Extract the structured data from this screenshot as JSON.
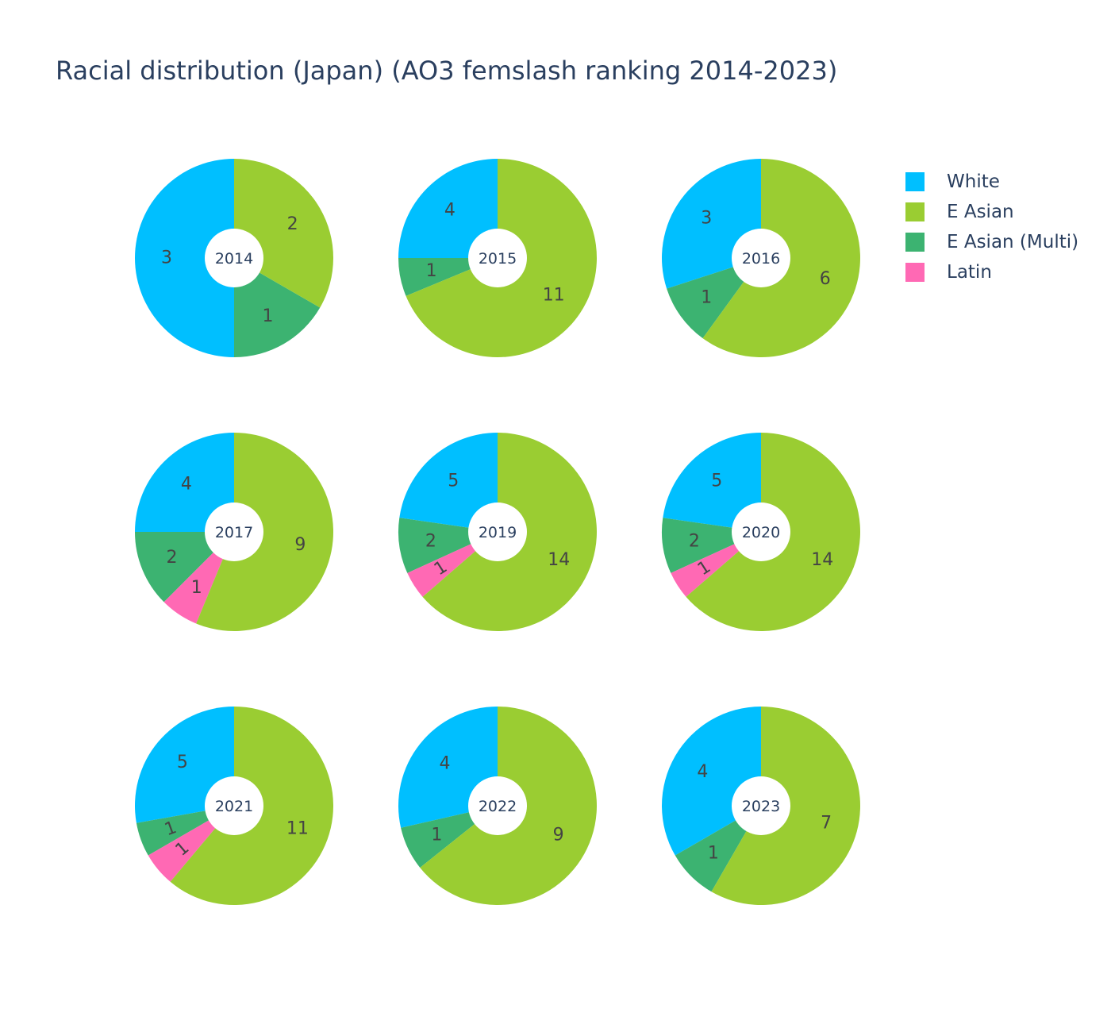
{
  "chart_data": {
    "type": "pie",
    "title": "Racial distribution (Japan) (AO3 femslash ranking 2014-2023)",
    "categories": [
      "White",
      "E Asian",
      "E Asian (Multi)",
      "Latin"
    ],
    "colors": {
      "White": "#00bfff",
      "E Asian": "#9acd32",
      "E Asian (Multi)": "#3cb371",
      "Latin": "#ff69b4"
    },
    "legend_position": "top-right",
    "donut": true,
    "pies": [
      {
        "label": "2014",
        "values": {
          "White": 3,
          "E Asian": 2,
          "E Asian (Multi)": 1,
          "Latin": 0
        }
      },
      {
        "label": "2015",
        "values": {
          "White": 4,
          "E Asian": 11,
          "E Asian (Multi)": 1,
          "Latin": 0
        }
      },
      {
        "label": "2016",
        "values": {
          "White": 3,
          "E Asian": 6,
          "E Asian (Multi)": 1,
          "Latin": 0
        }
      },
      {
        "label": "2017",
        "values": {
          "White": 4,
          "E Asian": 9,
          "E Asian (Multi)": 2,
          "Latin": 1
        }
      },
      {
        "label": "2019",
        "values": {
          "White": 5,
          "E Asian": 14,
          "E Asian (Multi)": 2,
          "Latin": 1
        }
      },
      {
        "label": "2020",
        "values": {
          "White": 5,
          "E Asian": 14,
          "E Asian (Multi)": 2,
          "Latin": 1
        }
      },
      {
        "label": "2021",
        "values": {
          "White": 5,
          "E Asian": 11,
          "E Asian (Multi)": 1,
          "Latin": 1
        }
      },
      {
        "label": "2022",
        "values": {
          "White": 4,
          "E Asian": 9,
          "E Asian (Multi)": 1,
          "Latin": 0
        }
      },
      {
        "label": "2023",
        "values": {
          "White": 4,
          "E Asian": 7,
          "E Asian (Multi)": 1,
          "Latin": 0
        }
      }
    ]
  }
}
